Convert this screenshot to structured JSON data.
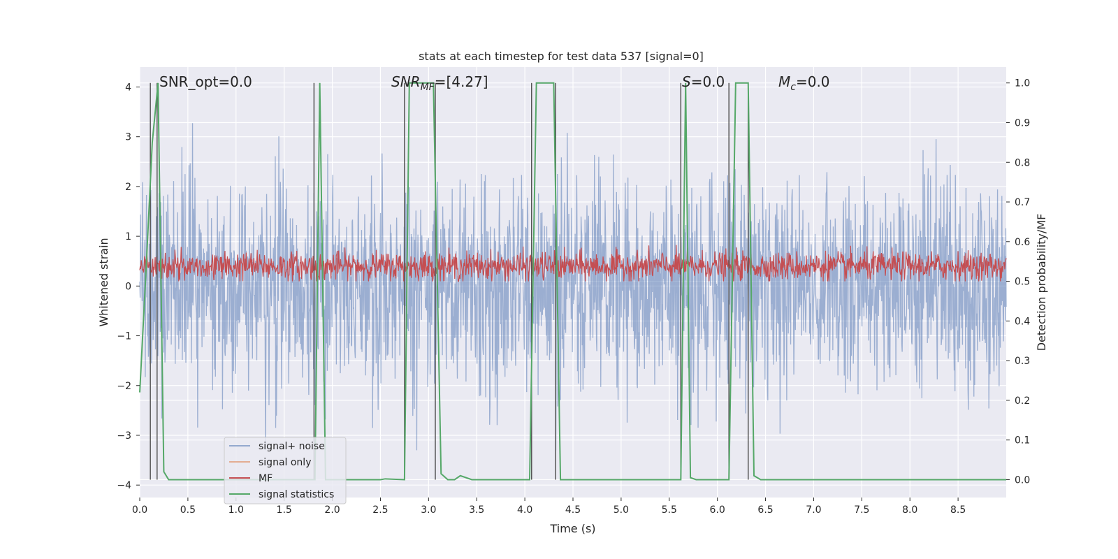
{
  "chart_data": {
    "type": "line",
    "title": "stats at each timestep for test data 537 [signal=0]",
    "xlabel": "Time (s)",
    "ylabel": "Whitened strain",
    "y2label": "Detection probability/MF",
    "xlim": [
      0.0,
      9.0
    ],
    "ylim": [
      -4.25,
      4.4
    ],
    "y2lim": [
      -0.045,
      1.04
    ],
    "xticks": [
      0.0,
      0.5,
      1.0,
      1.5,
      2.0,
      2.5,
      3.0,
      3.5,
      4.0,
      4.5,
      5.0,
      5.5,
      6.0,
      6.5,
      7.0,
      7.5,
      8.0,
      8.5
    ],
    "xtick_labels": [
      "0.0",
      "0.5",
      "1.0",
      "1.5",
      "2.0",
      "2.5",
      "3.0",
      "3.5",
      "4.0",
      "4.5",
      "5.0",
      "5.5",
      "6.0",
      "6.5",
      "7.0",
      "7.5",
      "8.0",
      "8.5"
    ],
    "yticks": [
      -4,
      -3,
      -2,
      -1,
      0,
      1,
      2,
      3,
      4
    ],
    "ytick_labels": [
      "−4",
      "−3",
      "−2",
      "−1",
      "0",
      "1",
      "2",
      "3",
      "4"
    ],
    "y2ticks": [
      0.0,
      0.1,
      0.2,
      0.3,
      0.4,
      0.5,
      0.6,
      0.7,
      0.8,
      0.9,
      1.0
    ],
    "y2tick_labels": [
      "0.0",
      "0.1",
      "0.2",
      "0.3",
      "0.4",
      "0.5",
      "0.6",
      "0.7",
      "0.8",
      "0.9",
      "1.0"
    ],
    "grid": true,
    "legend_position": "lower-left",
    "annotations": {
      "snr_opt": "SNR_opt=0.0",
      "snr_mf": "SNR",
      "snr_mf_sub": "MF",
      "snr_mf_value": "=[4.27]",
      "s_label": "S",
      "s_value": "=0.0",
      "mc_label": "M",
      "mc_sub": "c",
      "mc_value": "=0.0"
    },
    "series": [
      {
        "name": "signal+ noise",
        "color": "#4c72b0",
        "axis": "left",
        "amplitude_range": [
          -3.3,
          3.6
        ]
      },
      {
        "name": "signal only",
        "color": "#dd8452",
        "axis": "left",
        "values": []
      },
      {
        "name": "MF",
        "color": "#c44e52",
        "axis": "right",
        "range": [
          0.5,
          0.6
        ]
      },
      {
        "name": "signal statistics",
        "color": "#55a868",
        "axis": "right",
        "x": [
          0.0,
          0.07,
          0.13,
          0.19,
          0.25,
          0.3,
          1.82,
          1.87,
          1.93,
          2.5,
          2.55,
          2.75,
          2.8,
          3.05,
          3.13,
          3.2,
          3.27,
          3.33,
          3.45,
          4.05,
          4.12,
          4.3,
          4.37,
          5.62,
          5.67,
          5.72,
          5.78,
          6.12,
          6.19,
          6.32,
          6.38,
          6.45,
          9.0
        ],
        "y": [
          0.22,
          0.55,
          0.85,
          1.0,
          0.02,
          0.0,
          0.0,
          1.0,
          0.0,
          0.0,
          0.002,
          0.0,
          1.0,
          1.0,
          0.015,
          0.0,
          0.0,
          0.01,
          0.0,
          0.0,
          1.0,
          1.0,
          0.0,
          0.0,
          1.0,
          0.005,
          0.0,
          0.0,
          1.0,
          1.0,
          0.01,
          0.0,
          0.0
        ]
      }
    ],
    "vertical_markers": {
      "color": "#555555",
      "x": [
        0.11,
        0.18,
        1.81,
        2.75,
        3.07,
        4.07,
        4.32,
        5.62,
        6.12,
        6.32
      ]
    },
    "legend": [
      "signal+ noise",
      "signal only",
      "MF",
      "signal statistics"
    ]
  }
}
